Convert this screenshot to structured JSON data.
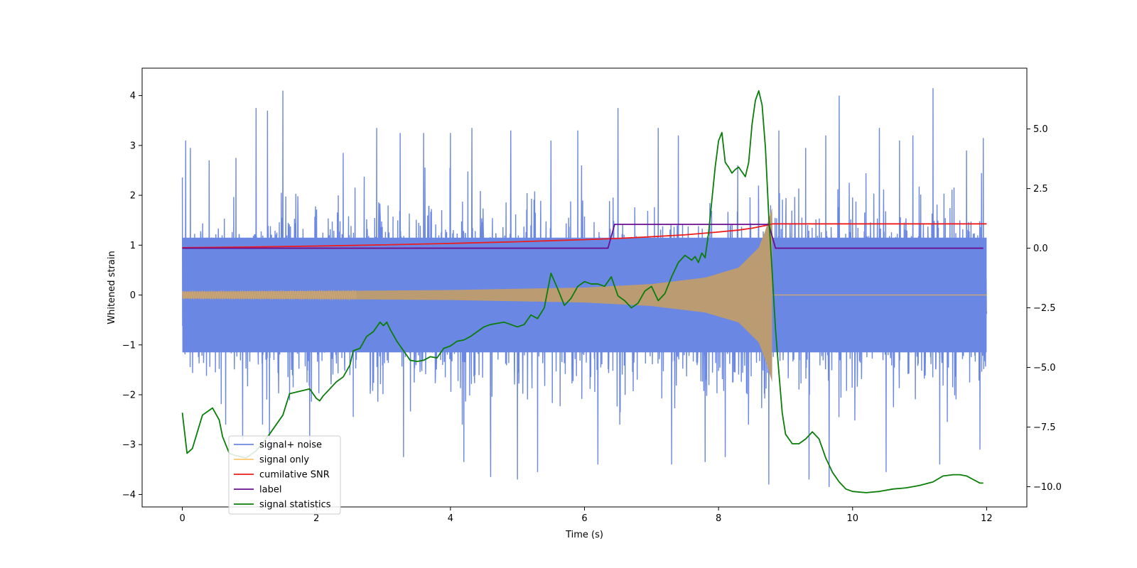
{
  "chart_data": {
    "type": "line",
    "title": "",
    "xlabel": "Time (s)",
    "ylabel": "Whitened strain",
    "y2label": "",
    "xlim": [
      -0.6,
      12.6
    ],
    "ylim": [
      -4.25,
      4.55
    ],
    "y2lim": [
      -10.85,
      7.55
    ],
    "xticks": [
      0,
      2,
      4,
      6,
      8,
      10,
      12
    ],
    "yticks": [
      -4,
      -3,
      -2,
      -1,
      0,
      1,
      2,
      3,
      4
    ],
    "y2ticks": [
      -10.0,
      -7.5,
      -5.0,
      -2.5,
      0.0,
      2.5,
      5.0
    ],
    "legend": "lower-left",
    "grid": false,
    "series": [
      {
        "name": "signal+ noise",
        "axis": "left",
        "color": "#6b87e4",
        "style": "dense-noise",
        "x_range": [
          0,
          12
        ],
        "core_band": [
          -1.15,
          1.15
        ],
        "typical_extreme": [
          -2.6,
          2.6
        ],
        "peaks": [
          {
            "x": 0.05,
            "y": 3.1
          },
          {
            "x": 0.12,
            "y": 2.95
          },
          {
            "x": 0.4,
            "y": 2.7
          },
          {
            "x": 0.8,
            "y": 2.75
          },
          {
            "x": 1.1,
            "y": 3.75
          },
          {
            "x": 1.27,
            "y": 3.7
          },
          {
            "x": 1.5,
            "y": 4.1
          },
          {
            "x": 1.9,
            "y": 2.9
          },
          {
            "x": 2.4,
            "y": 2.85
          },
          {
            "x": 2.9,
            "y": 3.35
          },
          {
            "x": 3.25,
            "y": 3.25
          },
          {
            "x": 3.6,
            "y": 3.25
          },
          {
            "x": 4.0,
            "y": 3.25
          },
          {
            "x": 4.32,
            "y": 3.35
          },
          {
            "x": 4.9,
            "y": 3.3
          },
          {
            "x": 5.5,
            "y": 3.1
          },
          {
            "x": 5.9,
            "y": 3.3
          },
          {
            "x": 6.5,
            "y": 3.75
          },
          {
            "x": 7.1,
            "y": 3.35
          },
          {
            "x": 7.4,
            "y": 3.2
          },
          {
            "x": 7.8,
            "y": 3.25
          },
          {
            "x": 8.1,
            "y": 3.2
          },
          {
            "x": 8.9,
            "y": 3.3
          },
          {
            "x": 9.3,
            "y": 2.95
          },
          {
            "x": 9.6,
            "y": 3.2
          },
          {
            "x": 9.8,
            "y": 4.0
          },
          {
            "x": 10.4,
            "y": 3.35
          },
          {
            "x": 10.7,
            "y": 3.1
          },
          {
            "x": 10.9,
            "y": 3.2
          },
          {
            "x": 11.2,
            "y": 4.15
          },
          {
            "x": 11.7,
            "y": 2.9
          },
          {
            "x": 11.95,
            "y": 3.15
          },
          {
            "x": 0.9,
            "y": -2.9
          },
          {
            "x": 1.3,
            "y": -3.1
          },
          {
            "x": 1.9,
            "y": -2.95
          },
          {
            "x": 3.3,
            "y": -3.25
          },
          {
            "x": 4.2,
            "y": -3.35
          },
          {
            "x": 4.6,
            "y": -3.65
          },
          {
            "x": 5.0,
            "y": -3.7
          },
          {
            "x": 5.3,
            "y": -3.55
          },
          {
            "x": 6.2,
            "y": -3.4
          },
          {
            "x": 7.3,
            "y": -3.4
          },
          {
            "x": 7.8,
            "y": -3.35
          },
          {
            "x": 8.1,
            "y": -3.25
          },
          {
            "x": 8.75,
            "y": -3.8
          },
          {
            "x": 9.35,
            "y": -3.7
          },
          {
            "x": 9.65,
            "y": -3.85
          },
          {
            "x": 10.5,
            "y": -3.55
          },
          {
            "x": 11.3,
            "y": -3.4
          },
          {
            "x": 11.9,
            "y": -3.1
          }
        ]
      },
      {
        "name": "signal only",
        "axis": "left",
        "color": "#ffc76e",
        "style": "chirp",
        "x_range": [
          0,
          8.8
        ],
        "envelope": [
          {
            "x": 0,
            "y": 0.07
          },
          {
            "x": 2,
            "y": 0.08
          },
          {
            "x": 4,
            "y": 0.1
          },
          {
            "x": 6,
            "y": 0.15
          },
          {
            "x": 7,
            "y": 0.22
          },
          {
            "x": 7.8,
            "y": 0.35
          },
          {
            "x": 8.3,
            "y": 0.55
          },
          {
            "x": 8.6,
            "y": 0.95
          },
          {
            "x": 8.7,
            "y": 1.3
          },
          {
            "x": 8.8,
            "y": 1.75
          }
        ],
        "after_merger_value": 0.0,
        "after_merger_range": [
          8.8,
          12
        ]
      },
      {
        "name": "cumilative SNR",
        "axis": "right",
        "color": "#ee1c1c",
        "x": [
          0,
          1,
          2,
          3,
          4,
          5,
          6,
          6.5,
          7,
          7.5,
          8,
          8.3,
          8.5,
          8.7,
          8.8,
          9,
          10,
          11,
          12
        ],
        "y": [
          0.02,
          0.05,
          0.09,
          0.14,
          0.2,
          0.27,
          0.36,
          0.41,
          0.48,
          0.56,
          0.68,
          0.76,
          0.84,
          0.95,
          1.02,
          1.02,
          1.02,
          1.02,
          1.02
        ]
      },
      {
        "name": "label",
        "axis": "right",
        "color": "#6a0f8e",
        "x": [
          0,
          6.35,
          6.45,
          8.75,
          8.85,
          11.95
        ],
        "y": [
          0,
          0,
          1,
          1,
          0,
          0
        ]
      },
      {
        "name": "signal statistics",
        "axis": "right",
        "color": "#0a7d0a",
        "x": [
          0,
          0.07,
          0.15,
          0.3,
          0.4,
          0.45,
          0.55,
          0.6,
          0.7,
          0.8,
          0.95,
          1.1,
          1.3,
          1.5,
          1.6,
          1.75,
          1.9,
          2.0,
          2.05,
          2.1,
          2.3,
          2.4,
          2.5,
          2.55,
          2.65,
          2.75,
          2.85,
          2.95,
          3.0,
          3.05,
          3.1,
          3.2,
          3.3,
          3.4,
          3.5,
          3.6,
          3.7,
          3.8,
          3.9,
          4.0,
          4.1,
          4.2,
          4.3,
          4.4,
          4.5,
          4.6,
          4.7,
          4.8,
          4.9,
          5.0,
          5.1,
          5.2,
          5.3,
          5.4,
          5.5,
          5.6,
          5.7,
          5.8,
          5.9,
          6.0,
          6.1,
          6.2,
          6.3,
          6.4,
          6.5,
          6.6,
          6.7,
          6.8,
          6.9,
          7.0,
          7.1,
          7.2,
          7.3,
          7.4,
          7.5,
          7.55,
          7.6,
          7.65,
          7.7,
          7.75,
          7.8,
          7.85,
          7.9,
          7.95,
          8.0,
          8.05,
          8.1,
          8.15,
          8.2,
          8.25,
          8.3,
          8.35,
          8.4,
          8.45,
          8.5,
          8.55,
          8.6,
          8.65,
          8.7,
          8.75,
          8.8,
          8.85,
          8.9,
          8.95,
          9.0,
          9.1,
          9.2,
          9.3,
          9.4,
          9.5,
          9.6,
          9.7,
          9.8,
          9.9,
          10.0,
          10.2,
          10.4,
          10.6,
          10.8,
          11.0,
          11.2,
          11.35,
          11.5,
          11.6,
          11.7,
          11.8,
          11.9,
          11.95
        ],
        "y": [
          -6.9,
          -8.6,
          -8.4,
          -7.0,
          -6.8,
          -6.7,
          -7.2,
          -7.9,
          -8.6,
          -8.7,
          -8.8,
          -8.5,
          -7.8,
          -7.0,
          -6.1,
          -6.0,
          -5.9,
          -6.3,
          -6.4,
          -6.2,
          -5.6,
          -5.4,
          -4.9,
          -4.3,
          -4.2,
          -3.7,
          -3.5,
          -3.1,
          -3.25,
          -3.1,
          -3.4,
          -3.9,
          -4.3,
          -4.7,
          -4.75,
          -4.7,
          -4.55,
          -4.6,
          -4.2,
          -4.1,
          -3.9,
          -3.85,
          -3.7,
          -3.5,
          -3.3,
          -3.2,
          -3.15,
          -3.1,
          -3.2,
          -3.3,
          -3.2,
          -2.8,
          -2.95,
          -2.5,
          -1.05,
          -1.7,
          -2.4,
          -2.1,
          -1.6,
          -1.4,
          -1.5,
          -1.5,
          -1.6,
          -1.2,
          -2.0,
          -2.2,
          -2.5,
          -2.3,
          -1.8,
          -1.6,
          -2.2,
          -1.9,
          -1.2,
          -0.6,
          -0.3,
          -0.4,
          -0.5,
          -0.35,
          -0.6,
          -0.2,
          -0.4,
          0.6,
          2.0,
          3.4,
          4.5,
          4.85,
          3.6,
          3.4,
          3.15,
          3.3,
          3.4,
          3.2,
          3.0,
          3.6,
          5.2,
          6.2,
          6.6,
          6.0,
          4.2,
          1.3,
          -1.0,
          -3.4,
          -5.2,
          -6.9,
          -7.8,
          -8.2,
          -8.2,
          -8.0,
          -7.7,
          -8.0,
          -8.8,
          -9.4,
          -9.8,
          -10.1,
          -10.2,
          -10.25,
          -10.2,
          -10.1,
          -10.05,
          -9.95,
          -9.8,
          -9.55,
          -9.5,
          -9.5,
          -9.55,
          -9.7,
          -9.85,
          -9.85
        ]
      }
    ]
  }
}
